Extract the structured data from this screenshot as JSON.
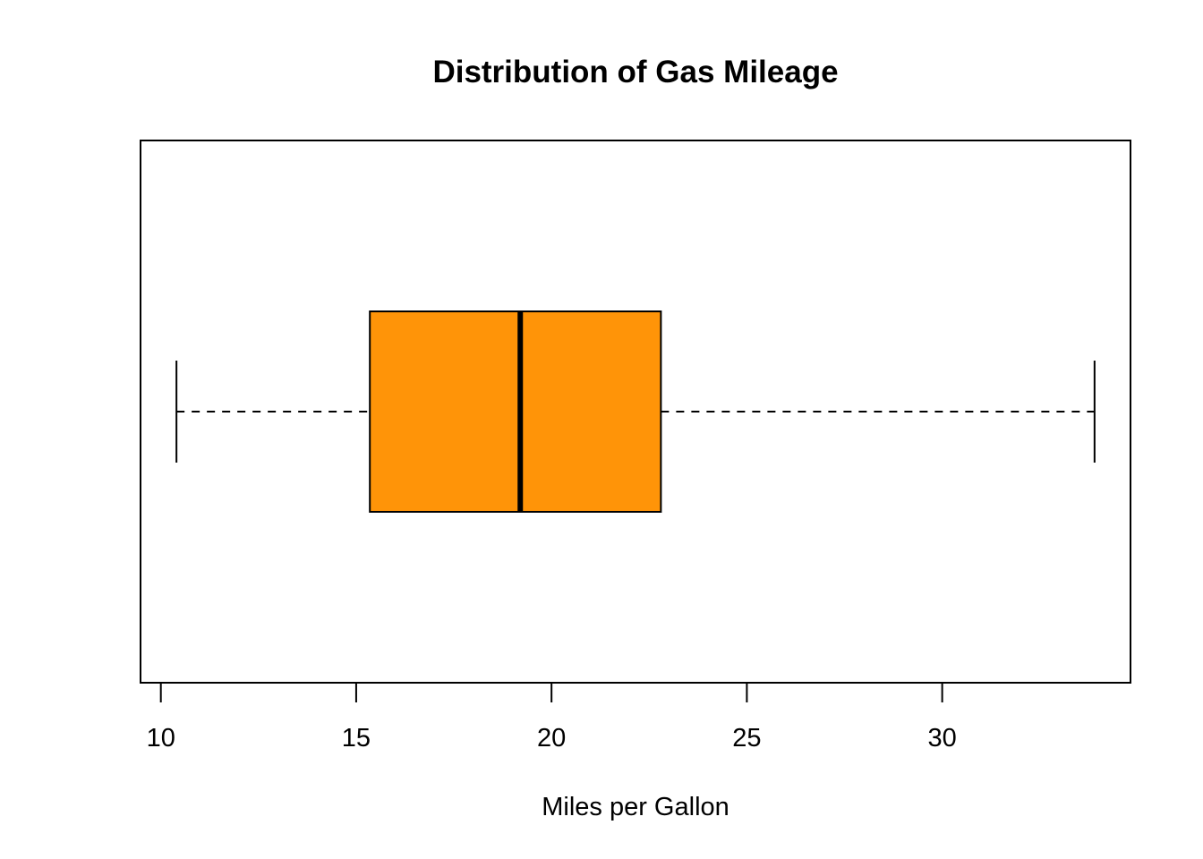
{
  "chart_data": {
    "type": "boxplot",
    "orientation": "horizontal",
    "title": "Distribution of Gas Mileage",
    "xlabel": "Miles per Gallon",
    "ylabel": "",
    "xlim": [
      9.48,
      34.82
    ],
    "ticks": [
      10,
      15,
      20,
      25,
      30
    ],
    "tick_labels": [
      "10",
      "15",
      "20",
      "25",
      "30"
    ],
    "box": {
      "min": 10.4,
      "q1": 15.35,
      "median": 19.2,
      "q3": 22.8,
      "max": 33.9
    },
    "fill_color": "#FF9408",
    "line_color": "#000000",
    "grid": false,
    "legend": "none"
  }
}
